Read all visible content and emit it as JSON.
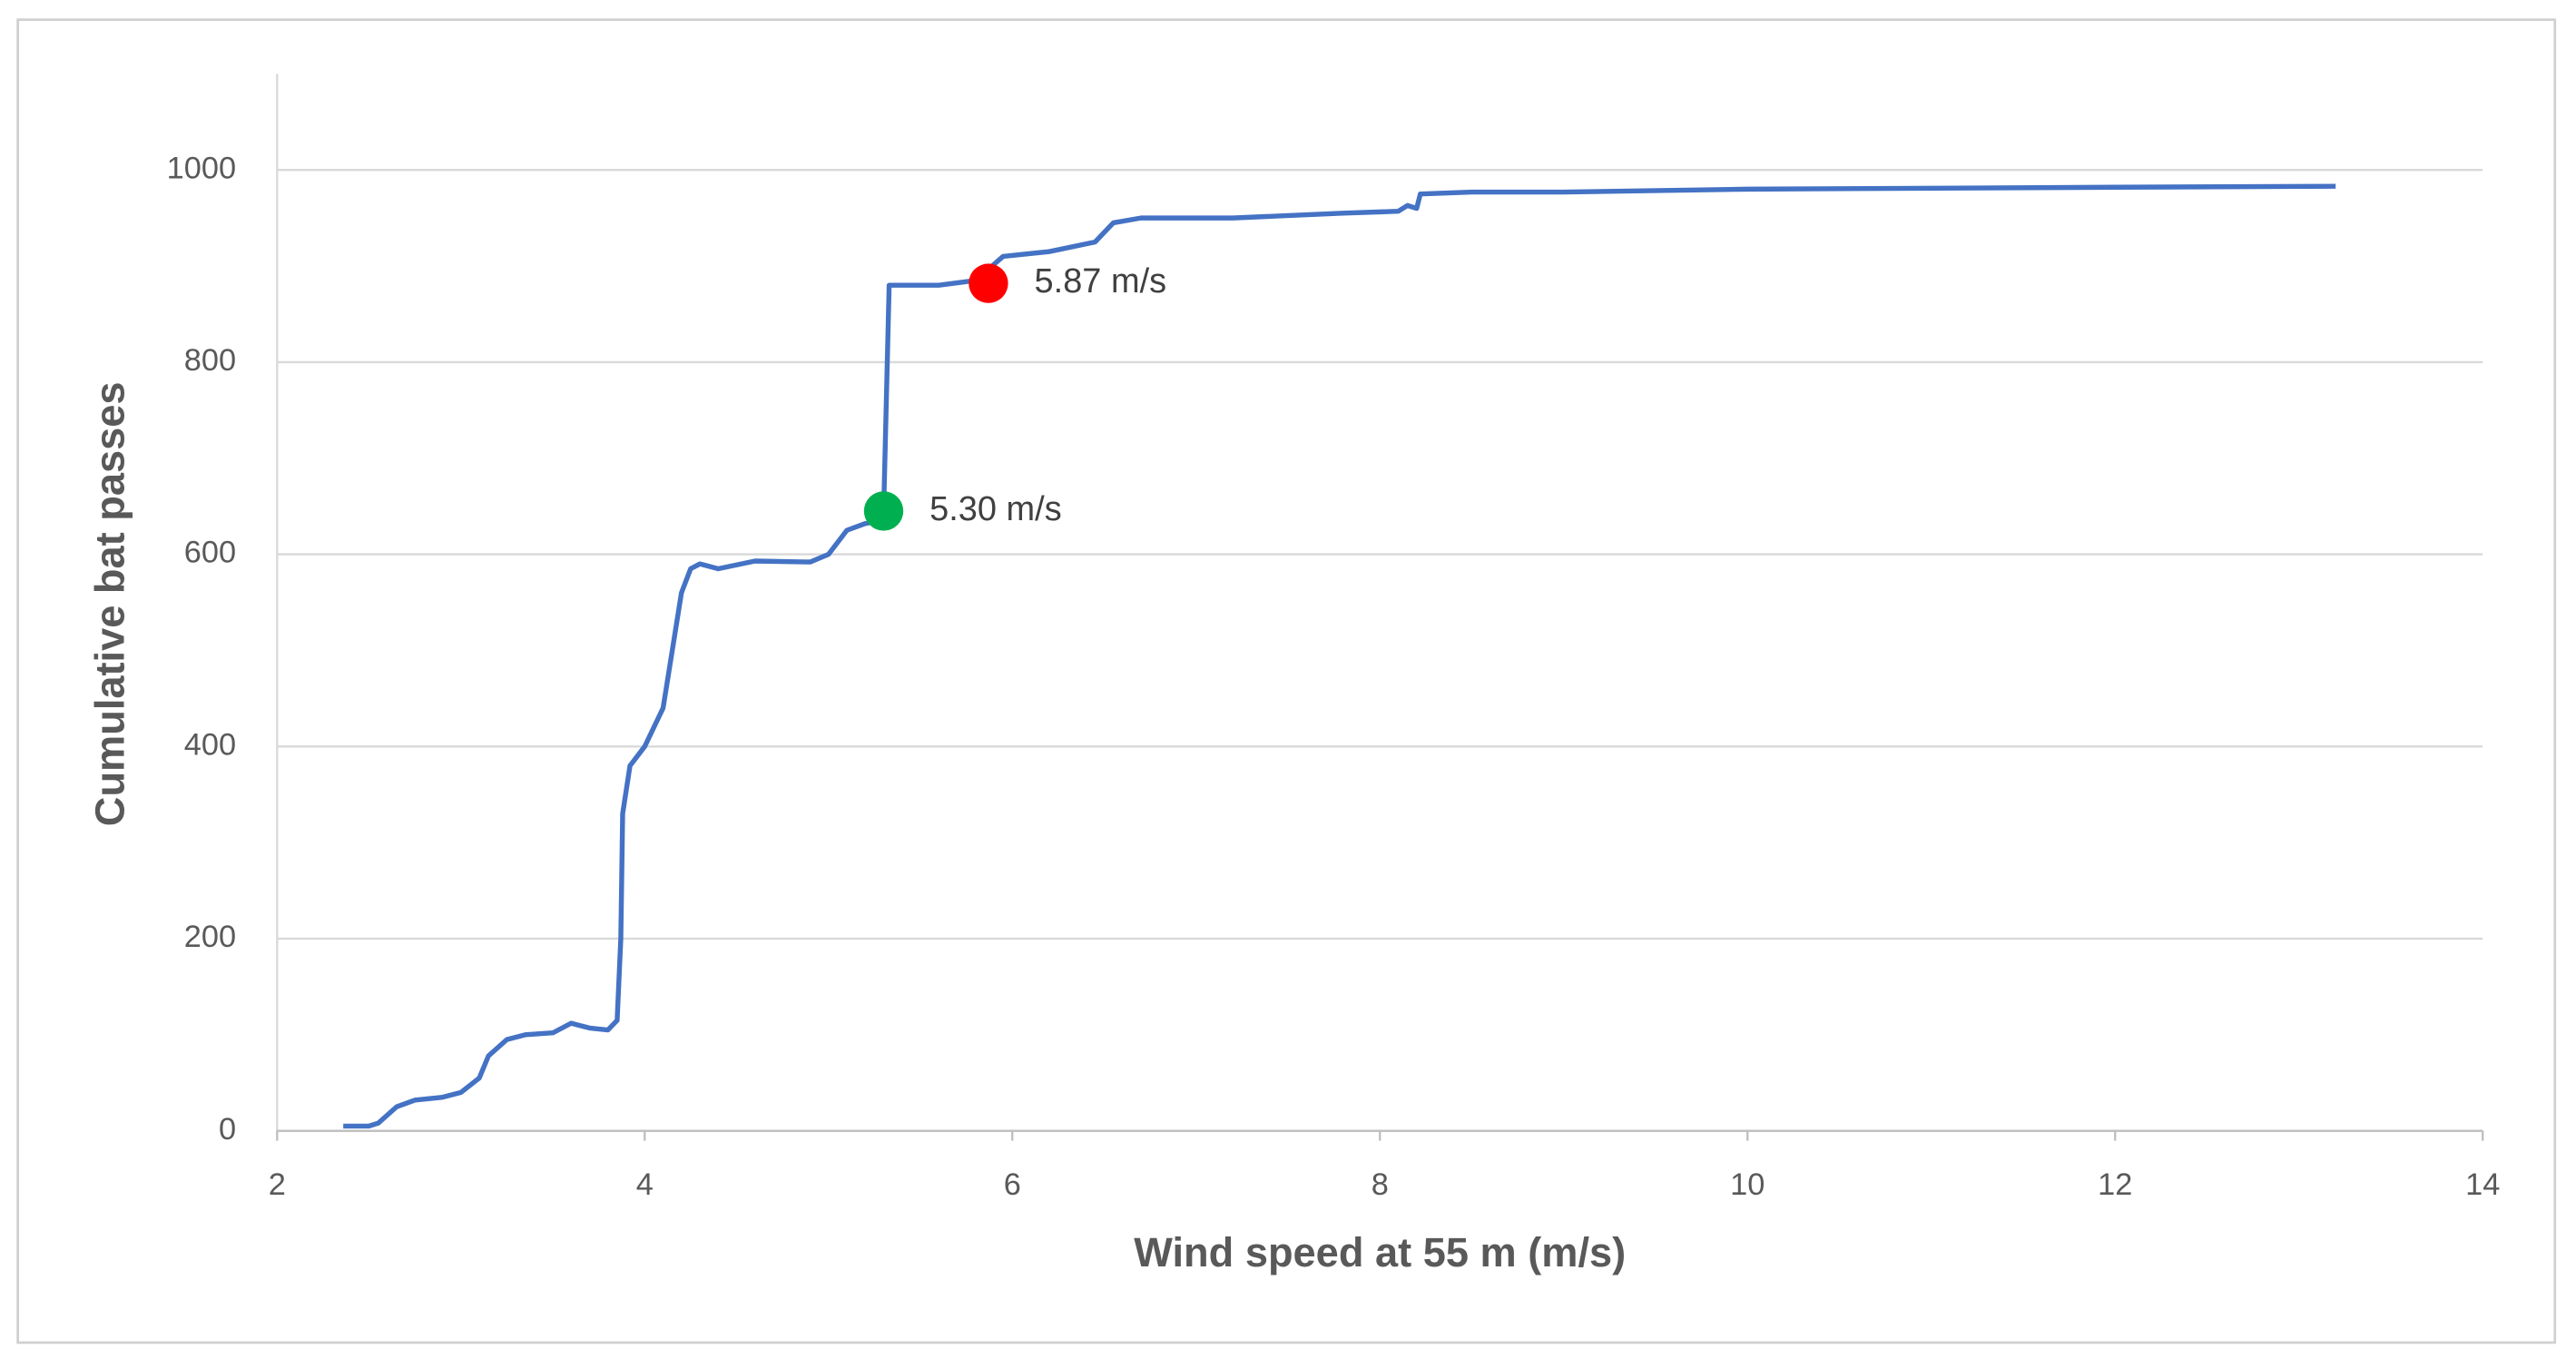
{
  "chart_data": {
    "type": "line",
    "x_label": "Wind speed at 55 m (m/s)",
    "y_label": "Cumulative  bat passes",
    "xlim": [
      2,
      14
    ],
    "xticks": [
      2,
      4,
      6,
      8,
      10,
      12,
      14
    ],
    "ylim": [
      0,
      1100
    ],
    "yticks": [
      0,
      200,
      400,
      600,
      800,
      1000
    ],
    "grid": true,
    "series": [
      {
        "color": "#4472c4",
        "x": [
          2.36,
          2.5,
          2.55,
          2.65,
          2.75,
          2.9,
          3.0,
          3.1,
          3.15,
          3.25,
          3.35,
          3.5,
          3.6,
          3.7,
          3.8,
          3.85,
          3.87,
          3.88,
          3.92,
          4.0,
          4.1,
          4.2,
          4.25,
          4.3,
          4.4,
          4.6,
          4.9,
          5.0,
          5.1,
          5.2,
          5.28,
          5.3,
          5.33,
          5.6,
          5.8,
          5.95,
          6.2,
          6.45,
          6.55,
          6.7,
          7.2,
          7.8,
          8.1,
          8.15,
          8.2,
          8.22,
          8.5,
          9.0,
          10.0,
          12.0,
          13.2
        ],
        "values": [
          5,
          5,
          8,
          25,
          32,
          35,
          40,
          55,
          78,
          95,
          100,
          102,
          112,
          107,
          105,
          115,
          200,
          330,
          380,
          400,
          440,
          560,
          585,
          590,
          585,
          593,
          592,
          600,
          625,
          632,
          635,
          645,
          880,
          880,
          885,
          910,
          915,
          925,
          945,
          950,
          950,
          955,
          957,
          963,
          960,
          975,
          977,
          977,
          980,
          982,
          983
        ]
      }
    ],
    "annotations": [
      {
        "text": "5.30 m/s",
        "x": 5.3,
        "y": 645,
        "color": "#00b050"
      },
      {
        "text": "5.87 m/s",
        "x": 5.87,
        "y": 882,
        "color": "#ff0000"
      }
    ]
  }
}
